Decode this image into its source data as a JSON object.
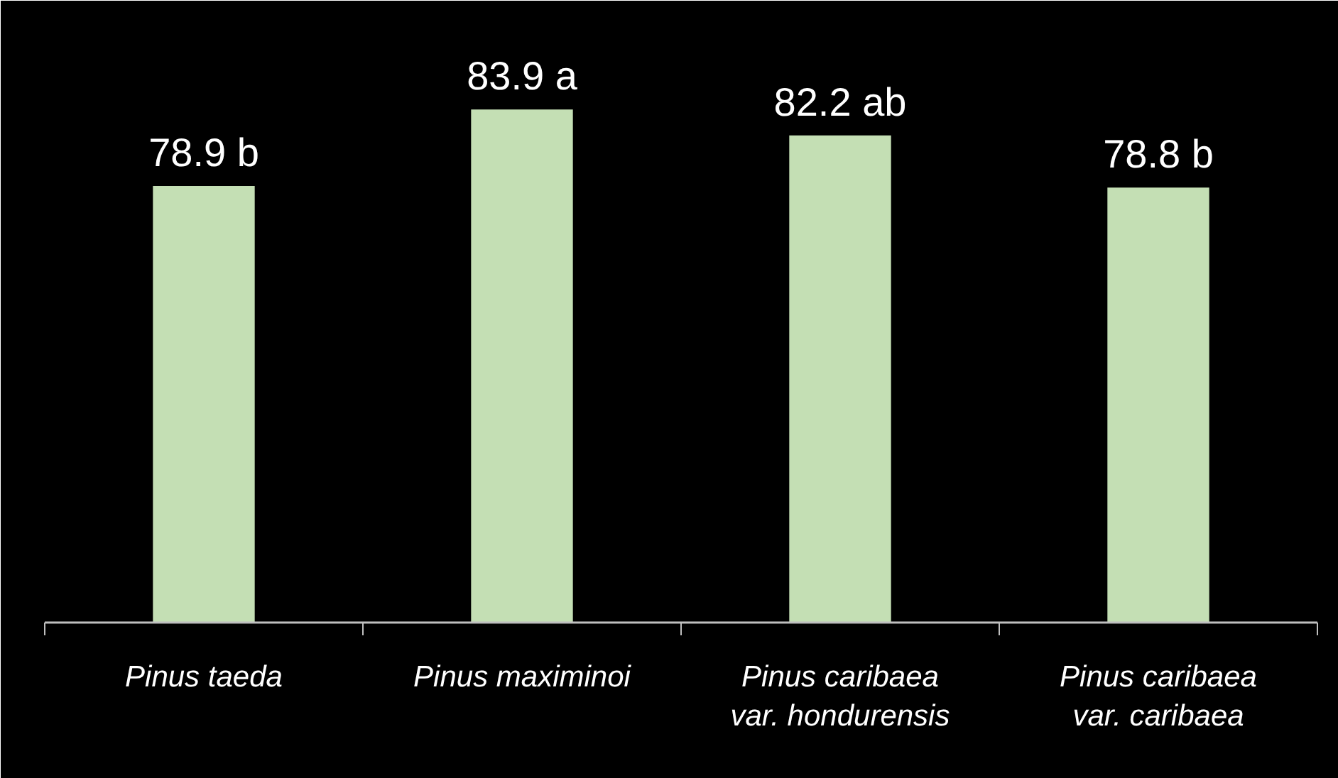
{
  "chart_data": {
    "type": "bar",
    "categories": [
      "Pinus taeda",
      "Pinus maximinoi",
      "Pinus caribaea\nvar. hondurensis",
      "Pinus caribaea\nvar. caribaea"
    ],
    "values": [
      78.9,
      83.9,
      82.2,
      78.8
    ],
    "value_labels": [
      "78.9 b",
      "83.9 a",
      "82.2 ab",
      "78.8 b"
    ],
    "color": "#c4dfb4",
    "ylim": [
      50.4,
      91
    ]
  }
}
